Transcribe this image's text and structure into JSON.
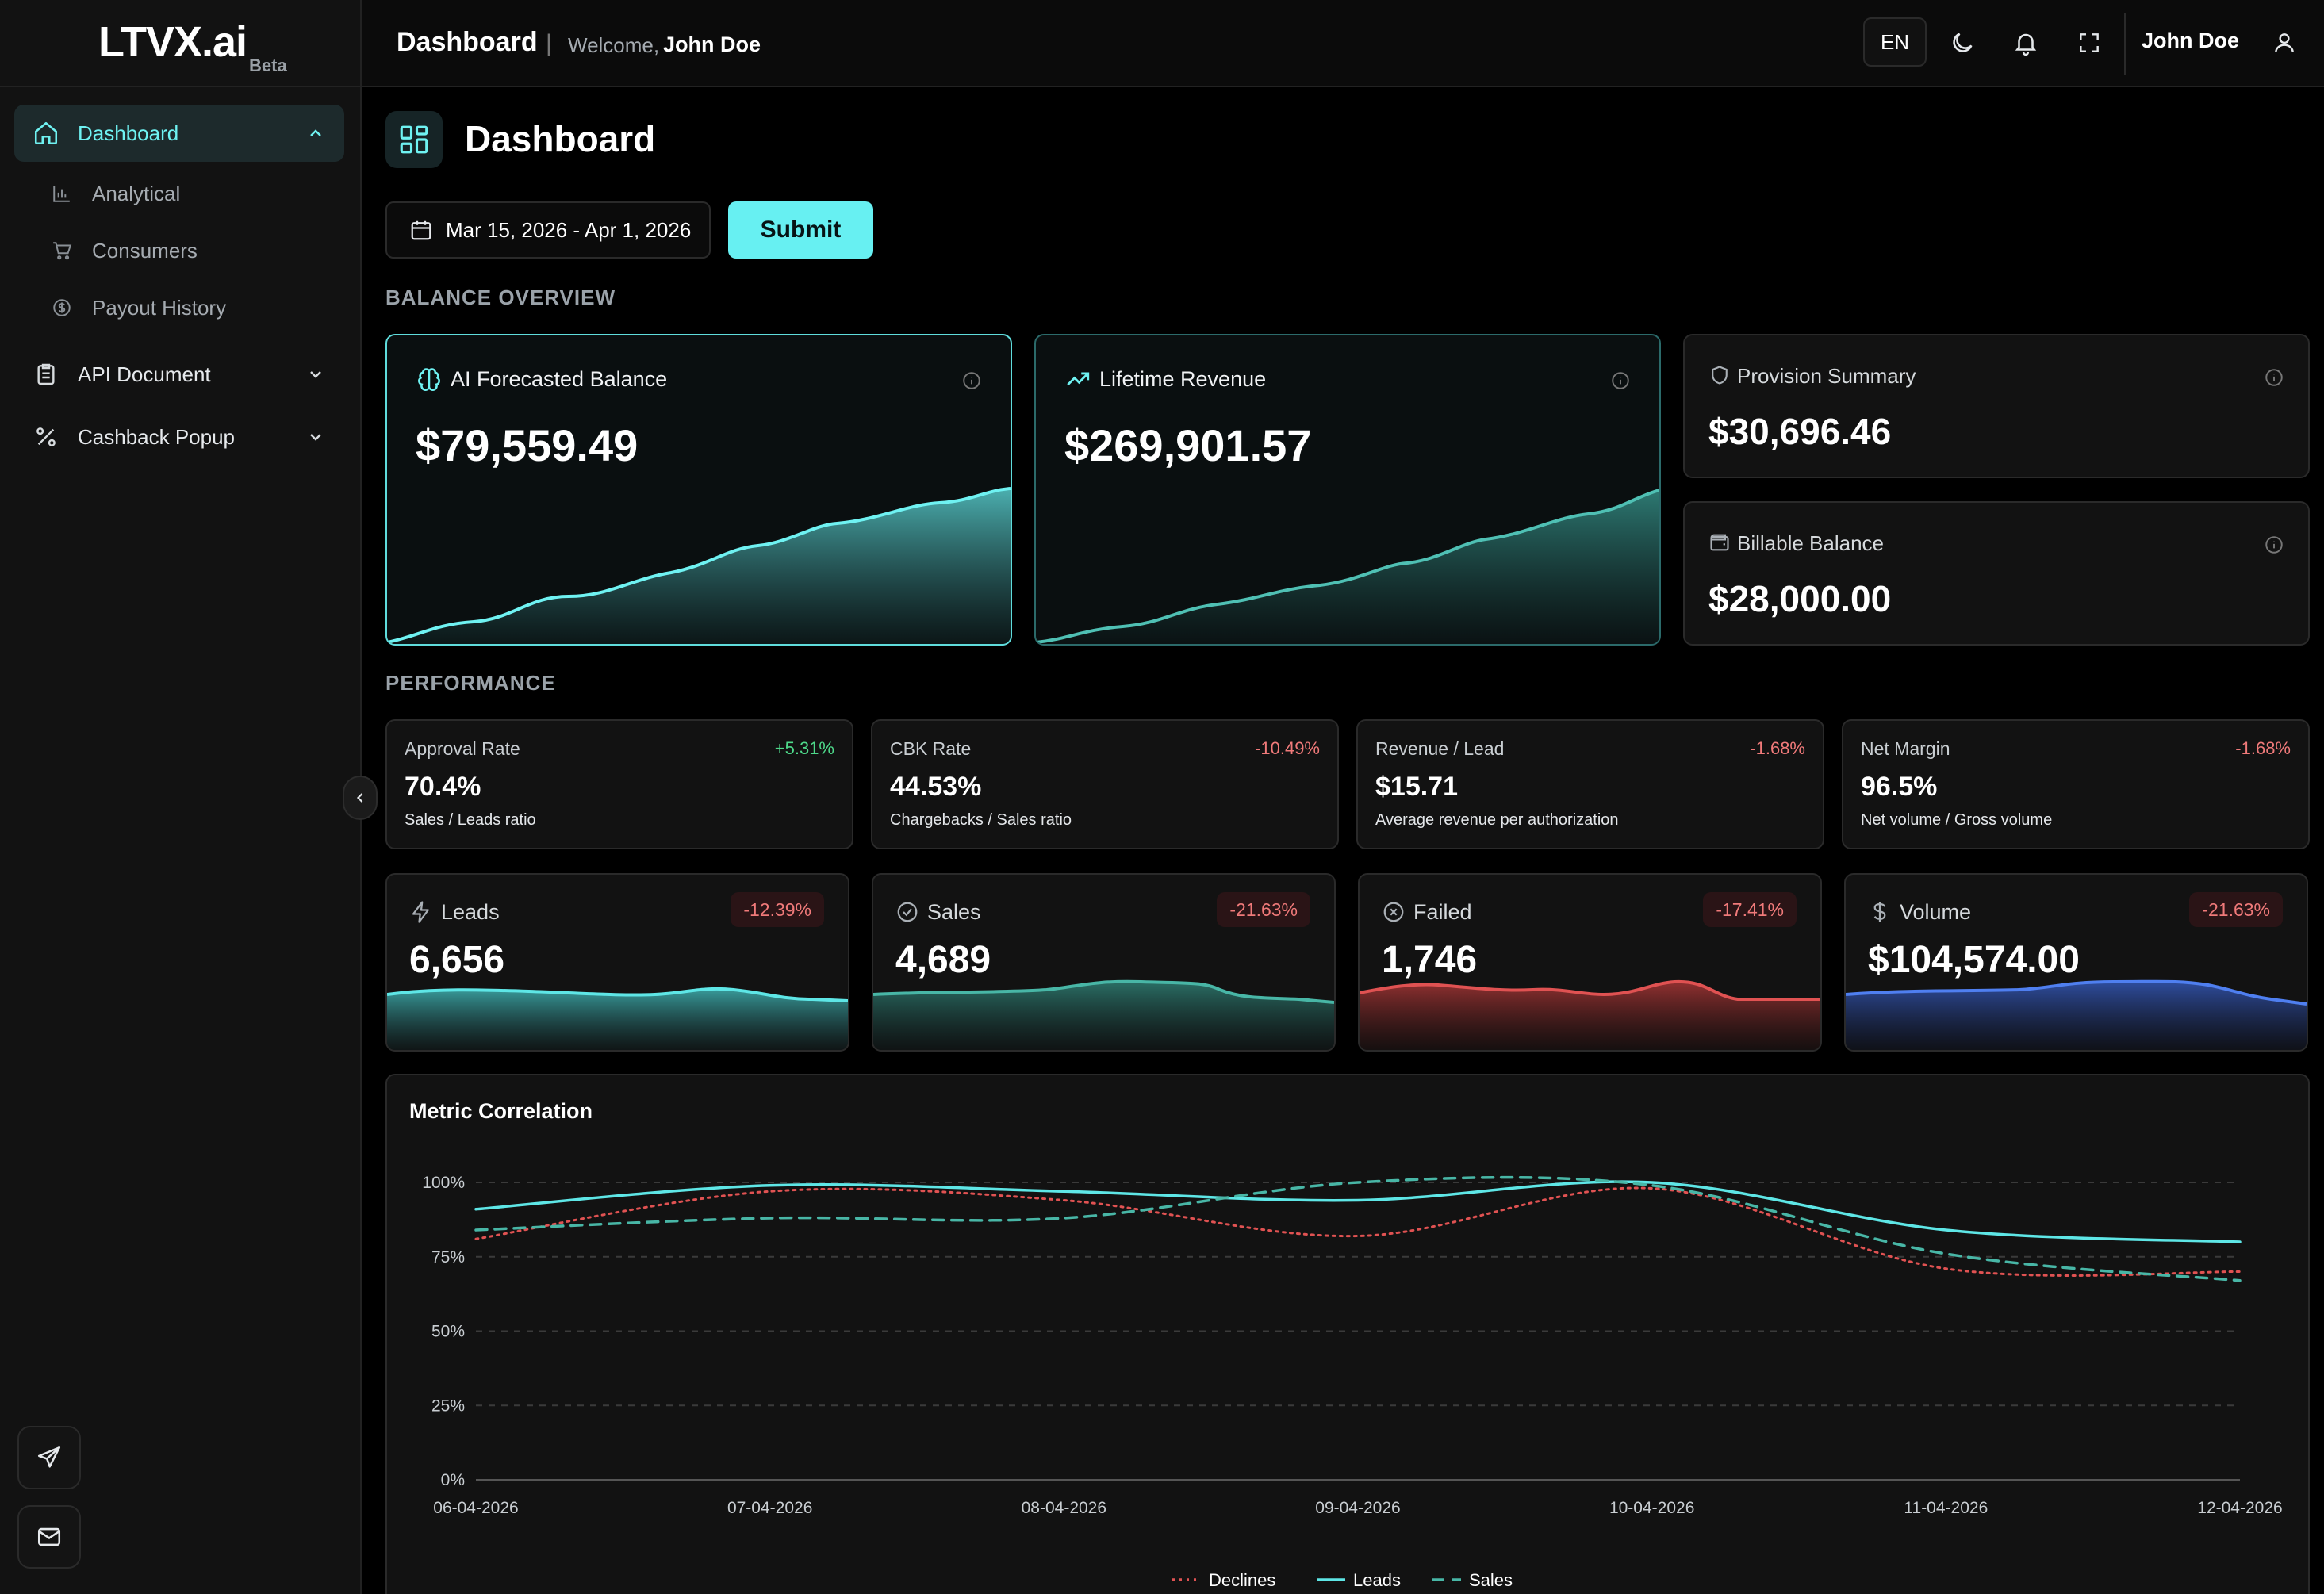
{
  "app": {
    "logo": "LTVX.ai",
    "logo_badge": "Beta"
  },
  "sidebar": {
    "dashboard": "Dashboard",
    "sub_items": [
      "Analytical",
      "Consumers",
      "Payout History"
    ],
    "api_document": "API Document",
    "cashback_popup": "Cashback Popup"
  },
  "header": {
    "title": "Dashboard",
    "separator": "|",
    "welcome": "Welcome,",
    "user": "John Doe",
    "lang": "EN",
    "user_name": "John Doe"
  },
  "page": {
    "title": "Dashboard",
    "date_range": "Mar 15, 2026 - Apr 1, 2026",
    "submit": "Submit"
  },
  "sections": {
    "balance_overview": "BALANCE OVERVIEW",
    "performance": "PERFORMANCE"
  },
  "balance": {
    "ai_forecast": {
      "title": "AI Forecasted Balance",
      "value": "$79,559.49"
    },
    "lifetime": {
      "title": "Lifetime Revenue",
      "value": "$269,901.57"
    },
    "provision": {
      "title": "Provision Summary",
      "value": "$30,696.46"
    },
    "billable": {
      "title": "Billable Balance",
      "value": "$28,000.00"
    }
  },
  "performance": [
    {
      "title": "Approval Rate",
      "delta": "+5.31%",
      "value": "70.4%",
      "sub": "Sales / Leads ratio",
      "delta_color": "#4ed98a"
    },
    {
      "title": "CBK Rate",
      "delta": "-10.49%",
      "value": "44.53%",
      "sub": "Chargebacks / Sales ratio",
      "delta_color": "#f07a7a"
    },
    {
      "title": "Revenue / Lead",
      "delta": "-1.68%",
      "value": "$15.71",
      "sub": "Average revenue per authorization",
      "delta_color": "#f07a7a"
    },
    {
      "title": "Net Margin",
      "delta": "-1.68%",
      "value": "96.5%",
      "sub": "Net volume / Gross volume",
      "delta_color": "#f07a7a"
    }
  ],
  "metrics": [
    {
      "title": "Leads",
      "badge": "-12.39%",
      "value": "6,656",
      "color": "#5ee6e6"
    },
    {
      "title": "Sales",
      "badge": "-21.63%",
      "value": "4,689",
      "color": "#48b6a6"
    },
    {
      "title": "Failed",
      "badge": "-17.41%",
      "value": "1,746",
      "color": "#e05252"
    },
    {
      "title": "Volume",
      "badge": "-21.63%",
      "value": "$104,574.00",
      "color": "#4f7ff0"
    }
  ],
  "chart_data": {
    "type": "line",
    "title": "Metric Correlation",
    "x": [
      "06-04-2026",
      "07-04-2026",
      "08-04-2026",
      "09-04-2026",
      "10-04-2026",
      "11-04-2026",
      "12-04-2026"
    ],
    "y_ticks": [
      "100%",
      "75%",
      "50%",
      "25%",
      "0%"
    ],
    "ylim": [
      0,
      100
    ],
    "grid": true,
    "legend_position": "bottom",
    "series": [
      {
        "name": "Declines",
        "style": "dotted",
        "color": "#e05252",
        "values": [
          81,
          97,
          94,
          82,
          98,
          71,
          70
        ]
      },
      {
        "name": "Leads",
        "style": "solid",
        "color": "#5ee6e6",
        "values": [
          91,
          99,
          97,
          94,
          100,
          84,
          80
        ]
      },
      {
        "name": "Sales",
        "style": "dashed",
        "color": "#48b6a6",
        "values": [
          84,
          88,
          88,
          100,
          99,
          76,
          67
        ]
      }
    ]
  }
}
